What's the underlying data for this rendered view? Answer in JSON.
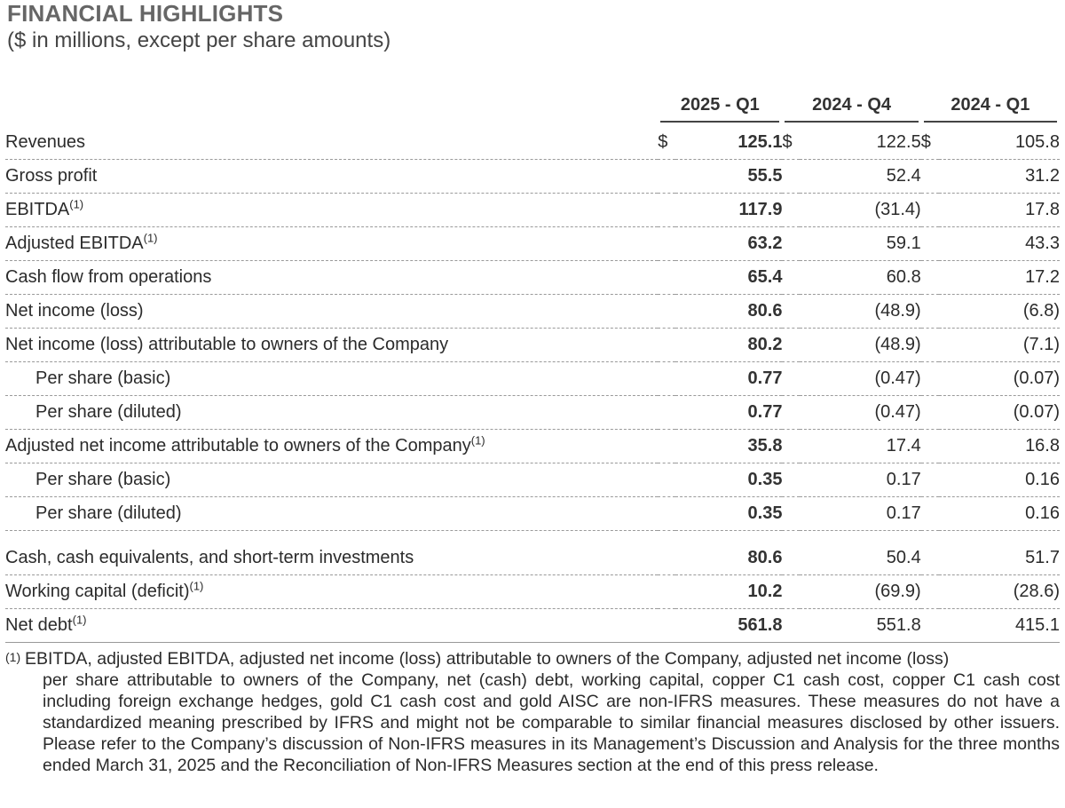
{
  "title": "FINANCIAL HIGHLIGHTS",
  "subtitle": "($ in millions, except per share amounts)",
  "columns": [
    "2025 - Q1",
    "2024 - Q4",
    "2024 - Q1"
  ],
  "currency_symbol": "$",
  "rows": [
    {
      "label": "Revenues",
      "sup": "",
      "v": [
        "125.1",
        "122.5",
        "105.8"
      ]
    },
    {
      "label": "Gross profit",
      "sup": "",
      "v": [
        "55.5",
        "52.4",
        "31.2"
      ]
    },
    {
      "label": "EBITDA",
      "sup": "(1)",
      "v": [
        "117.9",
        "(31.4)",
        "17.8"
      ]
    },
    {
      "label": "Adjusted EBITDA",
      "sup": "(1)",
      "v": [
        "63.2",
        "59.1",
        "43.3"
      ]
    },
    {
      "label": "Cash flow from operations",
      "sup": "",
      "v": [
        "65.4",
        "60.8",
        "17.2"
      ]
    },
    {
      "label": "Net income (loss)",
      "sup": "",
      "v": [
        "80.6",
        "(48.9)",
        "(6.8)"
      ]
    },
    {
      "label": "Net income (loss) attributable to owners of the Company",
      "sup": "",
      "v": [
        "80.2",
        "(48.9)",
        "(7.1)"
      ]
    },
    {
      "label": "Per share (basic)",
      "sup": "",
      "v": [
        "0.77",
        "(0.47)",
        "(0.07)"
      ]
    },
    {
      "label": "Per share (diluted)",
      "sup": "",
      "v": [
        "0.77",
        "(0.47)",
        "(0.07)"
      ]
    },
    {
      "label": "Adjusted net income attributable to owners of the Company",
      "sup": "(1)",
      "v": [
        "35.8",
        "17.4",
        "16.8"
      ]
    },
    {
      "label": "Per share (basic)",
      "sup": "",
      "v": [
        "0.35",
        "0.17",
        "0.16"
      ]
    },
    {
      "label": "Per share (diluted)",
      "sup": "",
      "v": [
        "0.35",
        "0.17",
        "0.16"
      ]
    },
    {
      "label": "Cash, cash equivalents, and short-term investments",
      "sup": "",
      "v": [
        "80.6",
        "50.4",
        "51.7"
      ]
    },
    {
      "label": "Working capital (deficit)",
      "sup": "(1)",
      "v": [
        "10.2",
        "(69.9)",
        "(28.6)"
      ]
    },
    {
      "label": "Net debt",
      "sup": "(1)",
      "v": [
        "561.8",
        "551.8",
        "415.1"
      ]
    }
  ],
  "footnote": {
    "marker": "(1)",
    "first_line": "EBITDA, adjusted EBITDA, adjusted net income (loss) attributable to owners of the Company, adjusted net income (loss)",
    "rest": "per share attributable to owners of the Company, net (cash) debt, working capital, copper C1 cash cost, copper C1 cash cost including foreign exchange hedges, gold C1 cash cost and gold AISC are non-IFRS measures. These measures do not have a standardized meaning prescribed by IFRS and might not be comparable to similar financial measures disclosed by other issuers. Please refer to the Company’s discussion of Non-IFRS measures in its Management’s Discussion and Analysis for the three months ended March 31, 2025 and the Reconciliation of Non-IFRS Measures section at the end of this press release."
  }
}
